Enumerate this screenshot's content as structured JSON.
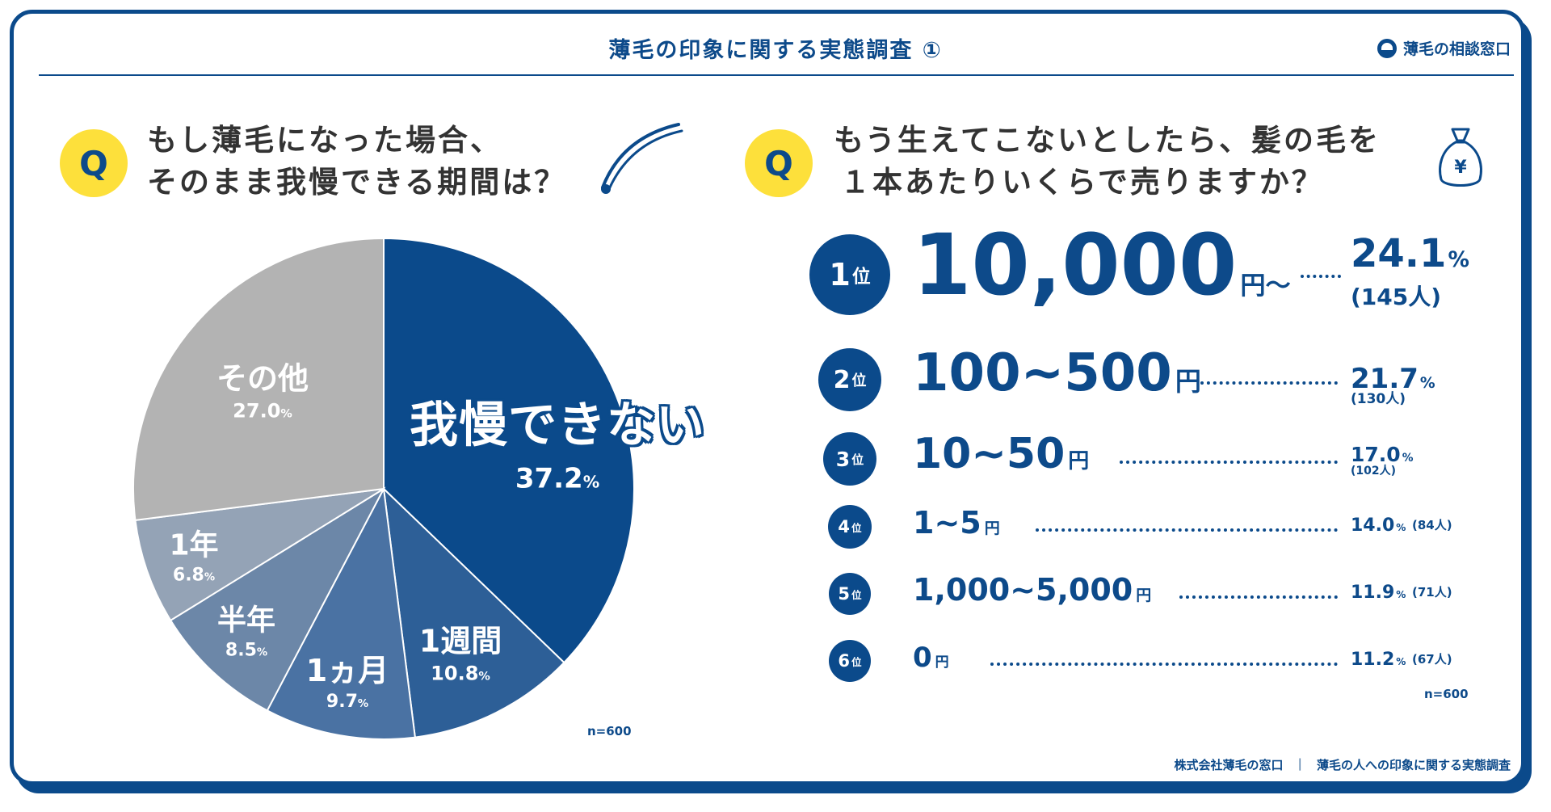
{
  "header": {
    "title": "薄毛の印象に関する実態調査 ①",
    "brand": "薄毛の相談窓口"
  },
  "left": {
    "q_badge": "Q",
    "question_line1": "もし薄毛になった場合、",
    "question_line2": "そのまま我慢できる期間は？",
    "n_note": "n=600"
  },
  "right": {
    "q_badge": "Q",
    "question_line1": "もう生えてこないとしたら、髪の毛を",
    "question_line2": "１本あたりいくらで売りますか？",
    "yen_symbol": "¥",
    "n_note": "n=600"
  },
  "footer": {
    "company": "株式会社薄毛の窓口",
    "separator": "|",
    "survey": "薄毛の人への印象に関する実態調査"
  },
  "colors": {
    "navy": "#0b4a8b",
    "blue2": "#2d5f97",
    "blue3": "#4a72a3",
    "slate": "#6c87a8",
    "grayblue": "#94a3b6",
    "gray": "#b3b3b3",
    "yellow": "#fde03b"
  },
  "chart_data": [
    {
      "type": "pie",
      "series": [
        {
          "name": "我慢できない",
          "value": 37.2,
          "label": "我慢できない",
          "pct_label": "37.2",
          "color": "#0b4a8b"
        },
        {
          "name": "1週間",
          "value": 10.8,
          "label": "1週間",
          "pct_label": "10.8",
          "color": "#2d5f97"
        },
        {
          "name": "1ヵ月",
          "value": 9.7,
          "label": "1ヵ月",
          "pct_label": "9.7",
          "color": "#4a72a3"
        },
        {
          "name": "半年",
          "value": 8.5,
          "label": "半年",
          "pct_label": "8.5",
          "color": "#6c87a8"
        },
        {
          "name": "1年",
          "value": 6.8,
          "label": "1年",
          "pct_label": "6.8",
          "color": "#94a3b6"
        },
        {
          "name": "その他",
          "value": 27.0,
          "label": "その他",
          "pct_label": "27.0",
          "color": "#b3b3b3"
        }
      ],
      "percent_symbol": "%",
      "start": "12 o'clock, clockwise"
    },
    {
      "type": "table",
      "title": "",
      "rows": [
        {
          "rank_num": "1",
          "rank_suffix": "位",
          "price": "10,000",
          "unit": "円～",
          "percent": "24.1",
          "count": "(145人)"
        },
        {
          "rank_num": "2",
          "rank_suffix": "位",
          "price": "100~500",
          "unit": "円",
          "percent": "21.7",
          "count": "(130人)"
        },
        {
          "rank_num": "3",
          "rank_suffix": "位",
          "price": "10~50",
          "unit": "円",
          "percent": "17.0",
          "count": "(102人)"
        },
        {
          "rank_num": "4",
          "rank_suffix": "位",
          "price": "1~5",
          "unit": "円",
          "percent": "14.0",
          "count": "(84人)"
        },
        {
          "rank_num": "5",
          "rank_suffix": "位",
          "price": "1,000~5,000",
          "unit": "円",
          "percent": "11.9",
          "count": "(71人)"
        },
        {
          "rank_num": "6",
          "rank_suffix": "位",
          "price": "0",
          "unit": "円",
          "percent": "11.2",
          "count": "(67人)"
        }
      ],
      "percent_symbol": "%"
    }
  ]
}
